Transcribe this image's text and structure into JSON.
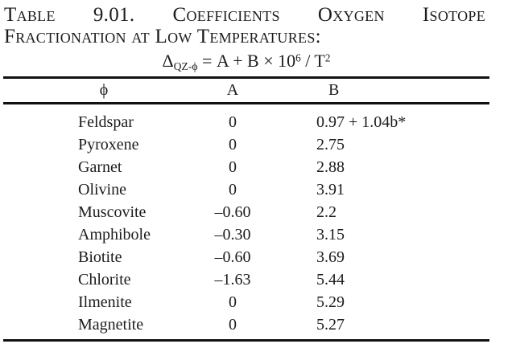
{
  "caption": {
    "line1": "Table 9.01. Coefficients Oxygen Isotope",
    "line2": "Fractionation at Low Temperatures:"
  },
  "formula": {
    "delta": "Δ",
    "subscript": "QZ-ϕ",
    "equals_part": " = A + B × 10",
    "exponent_6": "6",
    "slash_part": " / T",
    "exponent_2": "2"
  },
  "table": {
    "headers": [
      "ϕ",
      "A",
      "B"
    ],
    "rows": [
      {
        "mineral": "Feldspar",
        "A": "0",
        "B": "0.97 + 1.04b*"
      },
      {
        "mineral": "Pyroxene",
        "A": "0",
        "B": "2.75"
      },
      {
        "mineral": "Garnet",
        "A": "0",
        "B": "2.88"
      },
      {
        "mineral": "Olivine",
        "A": "0",
        "B": "3.91"
      },
      {
        "mineral": "Muscovite",
        "A": "–0.60",
        "B": "2.2"
      },
      {
        "mineral": "Amphibole",
        "A": "–0.30",
        "B": "3.15"
      },
      {
        "mineral": "Biotite",
        "A": "–0.60",
        "B": "3.69"
      },
      {
        "mineral": "Chlorite",
        "A": "–1.63",
        "B": "5.44"
      },
      {
        "mineral": "Ilmenite",
        "A": "0",
        "B": "5.29"
      },
      {
        "mineral": "Magnetite",
        "A": "0",
        "B": "5.27"
      }
    ]
  },
  "colors": {
    "text": "#1c1c1c",
    "rule": "#111111",
    "background": "#ffffff"
  }
}
